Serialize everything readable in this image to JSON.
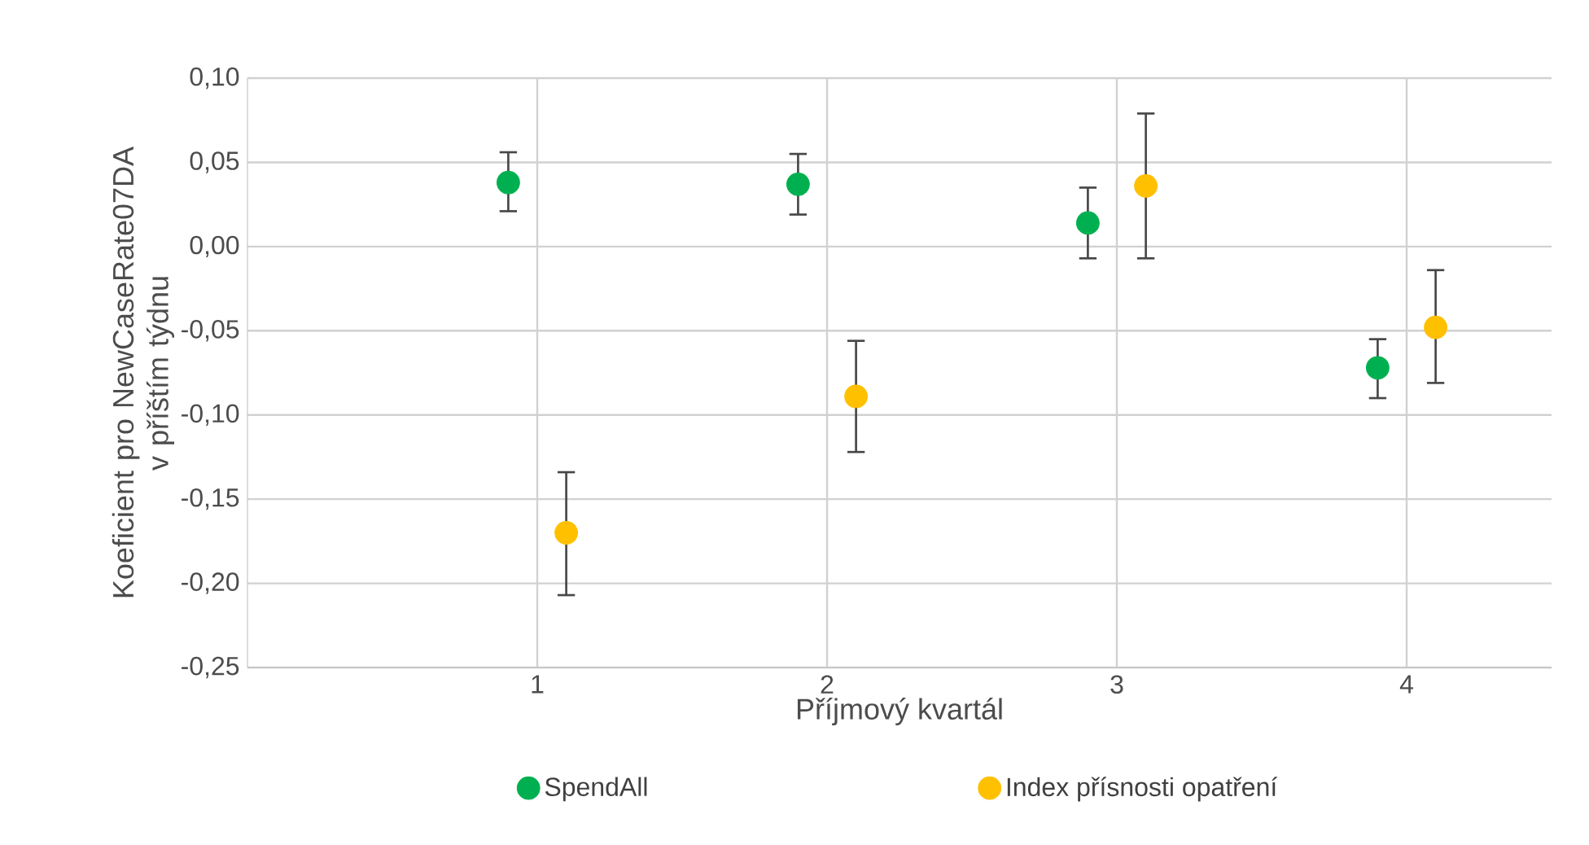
{
  "chart_data": {
    "type": "scatter",
    "xlabel": "Příjmový kvartál",
    "ylabel": "Koeficient pro NewCaseRate07DA v příštím týdnu",
    "xlim": [
      0,
      4.5
    ],
    "xticks": [
      1,
      2,
      3,
      4
    ],
    "ylim": [
      -0.25,
      0.1
    ],
    "yticks": [
      {
        "value": -0.25,
        "label": "-0,25"
      },
      {
        "value": -0.2,
        "label": "-0,20"
      },
      {
        "value": -0.15,
        "label": "-0,15"
      },
      {
        "value": -0.1,
        "label": "-0,10"
      },
      {
        "value": -0.05,
        "label": "-0,05"
      },
      {
        "value": 0,
        "label": "0,00"
      },
      {
        "value": 0.05,
        "label": "0,05"
      },
      {
        "value": 0.1,
        "label": "0,10"
      }
    ],
    "grid": true,
    "legend": "bottom",
    "marker": "circle",
    "series": [
      {
        "name": "SpendAll",
        "color": "#00b050",
        "x": [
          0.9,
          1.9,
          2.9,
          3.9
        ],
        "values": [
          0.038,
          0.037,
          0.014,
          -0.072
        ],
        "errors": [
          [
            0.021,
            0.056
          ],
          [
            0.019,
            0.055
          ],
          [
            -0.007,
            0.035
          ],
          [
            -0.09,
            -0.055
          ]
        ]
      },
      {
        "name": "Index přísnosti opatření",
        "color": "#ffc000",
        "x": [
          1.1,
          2.1,
          3.1,
          4.1
        ],
        "values": [
          -0.17,
          -0.089,
          0.036,
          -0.048
        ],
        "errors": [
          [
            -0.207,
            -0.134
          ],
          [
            -0.122,
            -0.056
          ],
          [
            -0.007,
            0.079
          ],
          [
            -0.081,
            -0.014
          ]
        ]
      }
    ]
  }
}
